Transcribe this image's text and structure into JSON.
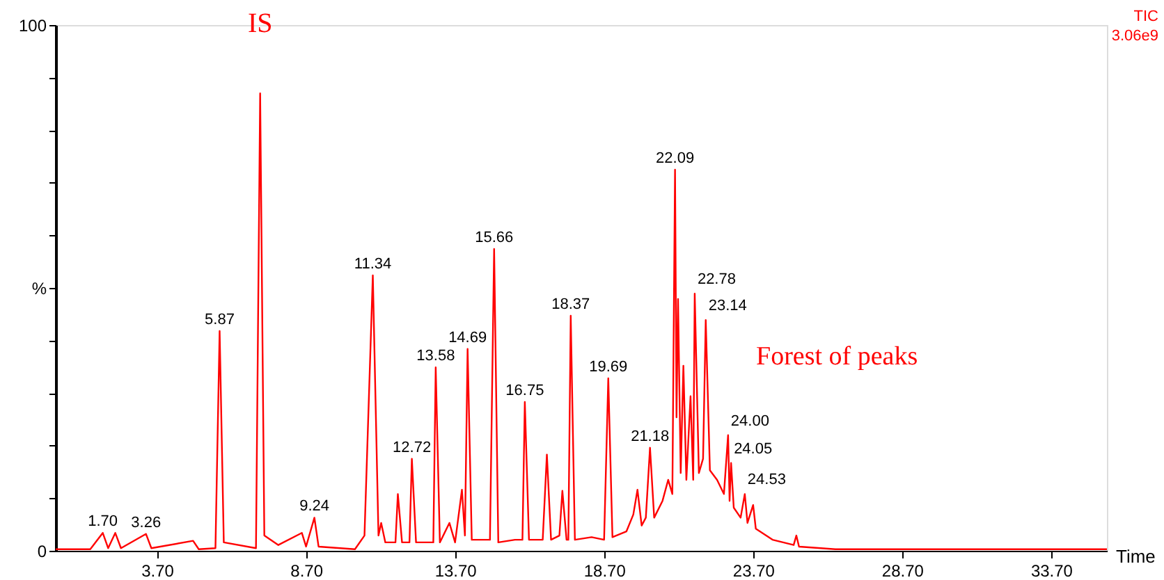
{
  "chart_data": {
    "type": "line",
    "title": "TIC",
    "subtitle": "3.06e9",
    "xlabel": "Time",
    "xlim": [
      0.3,
      35.57
    ],
    "ylim": [
      0,
      100
    ],
    "xticks": [
      {
        "value": 3.7,
        "label": "3.70"
      },
      {
        "value": 8.7,
        "label": "8.70"
      },
      {
        "value": 13.7,
        "label": "13.70"
      },
      {
        "value": 18.7,
        "label": "18.70"
      },
      {
        "value": 23.7,
        "label": "23.70"
      },
      {
        "value": 28.7,
        "label": "28.70"
      },
      {
        "value": 33.7,
        "label": "33.70"
      }
    ],
    "yticks": [
      0,
      {
        "value": 10,
        "label": null
      },
      {
        "value": 20,
        "label": null
      },
      {
        "value": 30,
        "label": null
      },
      {
        "value": 40,
        "label": null
      },
      {
        "value": 50,
        "label": "%"
      },
      {
        "value": 60,
        "label": null
      },
      {
        "value": 70,
        "label": null
      },
      {
        "value": 80,
        "label": null
      },
      {
        "value": 90,
        "label": null
      },
      100
    ],
    "grid": false,
    "marker": "none",
    "line_style": "solid",
    "series": [
      {
        "color": "#ff0000",
        "x": [
          0.3,
          1.46,
          1.88,
          2.06,
          2.3,
          2.49,
          3.33,
          3.51,
          4.91,
          5.1,
          5.66,
          5.8,
          5.94,
          7.02,
          7.16,
          7.3,
          7.77,
          8.56,
          8.7,
          8.98,
          9.12,
          10.34,
          10.66,
          10.94,
          11.13,
          11.22,
          11.36,
          11.7,
          11.78,
          11.92,
          12.17,
          12.25,
          12.39,
          12.97,
          13.05,
          13.19,
          13.51,
          13.7,
          13.93,
          14.03,
          14.12,
          14.26,
          14.87,
          15.01,
          15.15,
          15.71,
          15.96,
          16.04,
          16.18,
          16.64,
          16.78,
          16.92,
          17.2,
          17.3,
          17.44,
          17.5,
          17.58,
          17.72,
          18.28,
          18.7,
          18.84,
          18.98,
          19.45,
          19.68,
          19.82,
          19.96,
          20.1,
          20.24,
          20.38,
          20.66,
          20.85,
          20.99,
          21.08,
          21.13,
          21.18,
          21.27,
          21.36,
          21.46,
          21.6,
          21.69,
          21.74,
          21.88,
          22.02,
          22.11,
          22.25,
          22.49,
          22.72,
          22.86,
          22.91,
          22.96,
          23.05,
          23.28,
          23.42,
          23.51,
          23.7,
          23.79,
          24.35,
          25.06,
          25.15,
          25.24,
          26.46,
          35.57
        ],
        "values": [
          0.3,
          0.3,
          3.4,
          0.5,
          3.4,
          0.5,
          3.2,
          0.5,
          1.9,
          0.3,
          0.5,
          41.8,
          1.6,
          0.5,
          87.0,
          2.9,
          1.1,
          3.4,
          0.8,
          6.3,
          0.8,
          0.3,
          2.9,
          52.4,
          2.9,
          5.3,
          1.6,
          1.6,
          10.8,
          1.6,
          1.6,
          17.5,
          1.6,
          1.6,
          34.9,
          1.6,
          5.3,
          1.6,
          11.6,
          2.9,
          38.4,
          2.1,
          2.1,
          57.4,
          1.6,
          2.1,
          2.1,
          28.3,
          2.1,
          2.1,
          18.3,
          2.1,
          2.9,
          11.4,
          2.1,
          2.1,
          44.7,
          2.1,
          2.6,
          2.1,
          32.8,
          2.6,
          3.7,
          6.9,
          11.6,
          4.8,
          6.3,
          19.6,
          6.3,
          9.5,
          13.5,
          10.8,
          72.5,
          25.4,
          47.9,
          14.8,
          35.2,
          13.5,
          29.4,
          13.5,
          48.9,
          14.8,
          17.5,
          43.9,
          15.3,
          13.5,
          10.8,
          22.0,
          9.5,
          16.7,
          8.2,
          6.3,
          10.8,
          5.3,
          8.7,
          4.2,
          2.1,
          1.1,
          2.9,
          0.8,
          0.3,
          0.3
        ]
      }
    ],
    "annotations": [
      {
        "text": "IS",
        "x": 7.16,
        "y": 87.0
      },
      {
        "text": "1.70",
        "x": 1.88,
        "y": 3.4
      },
      {
        "text": "3.26",
        "x": 3.33,
        "y": 3.2
      },
      {
        "text": "5.87",
        "x": 5.8,
        "y": 41.8
      },
      {
        "text": "9.24",
        "x": 8.98,
        "y": 6.3
      },
      {
        "text": "11.34",
        "x": 10.94,
        "y": 52.4
      },
      {
        "text": "12.72",
        "x": 12.25,
        "y": 17.5
      },
      {
        "text": "13.58",
        "x": 13.05,
        "y": 34.9
      },
      {
        "text": "14.69",
        "x": 14.12,
        "y": 38.4
      },
      {
        "text": "15.66",
        "x": 15.01,
        "y": 57.4
      },
      {
        "text": "16.75",
        "x": 16.04,
        "y": 28.3
      },
      {
        "text": "18.37",
        "x": 17.58,
        "y": 44.7
      },
      {
        "text": "19.69",
        "x": 18.84,
        "y": 32.8
      },
      {
        "text": "21.18",
        "x": 20.24,
        "y": 19.6
      },
      {
        "text": "22.09",
        "x": 21.08,
        "y": 72.5
      },
      {
        "text": "22.78",
        "x": 21.74,
        "y": 48.9
      },
      {
        "text": "23.14",
        "x": 22.11,
        "y": 43.9
      },
      {
        "text": "24.00",
        "x": 22.86,
        "y": 22.0
      },
      {
        "text": "24.05",
        "x": 22.96,
        "y": 16.7
      },
      {
        "text": "24.53",
        "x": 23.42,
        "y": 10.8
      },
      "Forest of peaks"
    ]
  }
}
